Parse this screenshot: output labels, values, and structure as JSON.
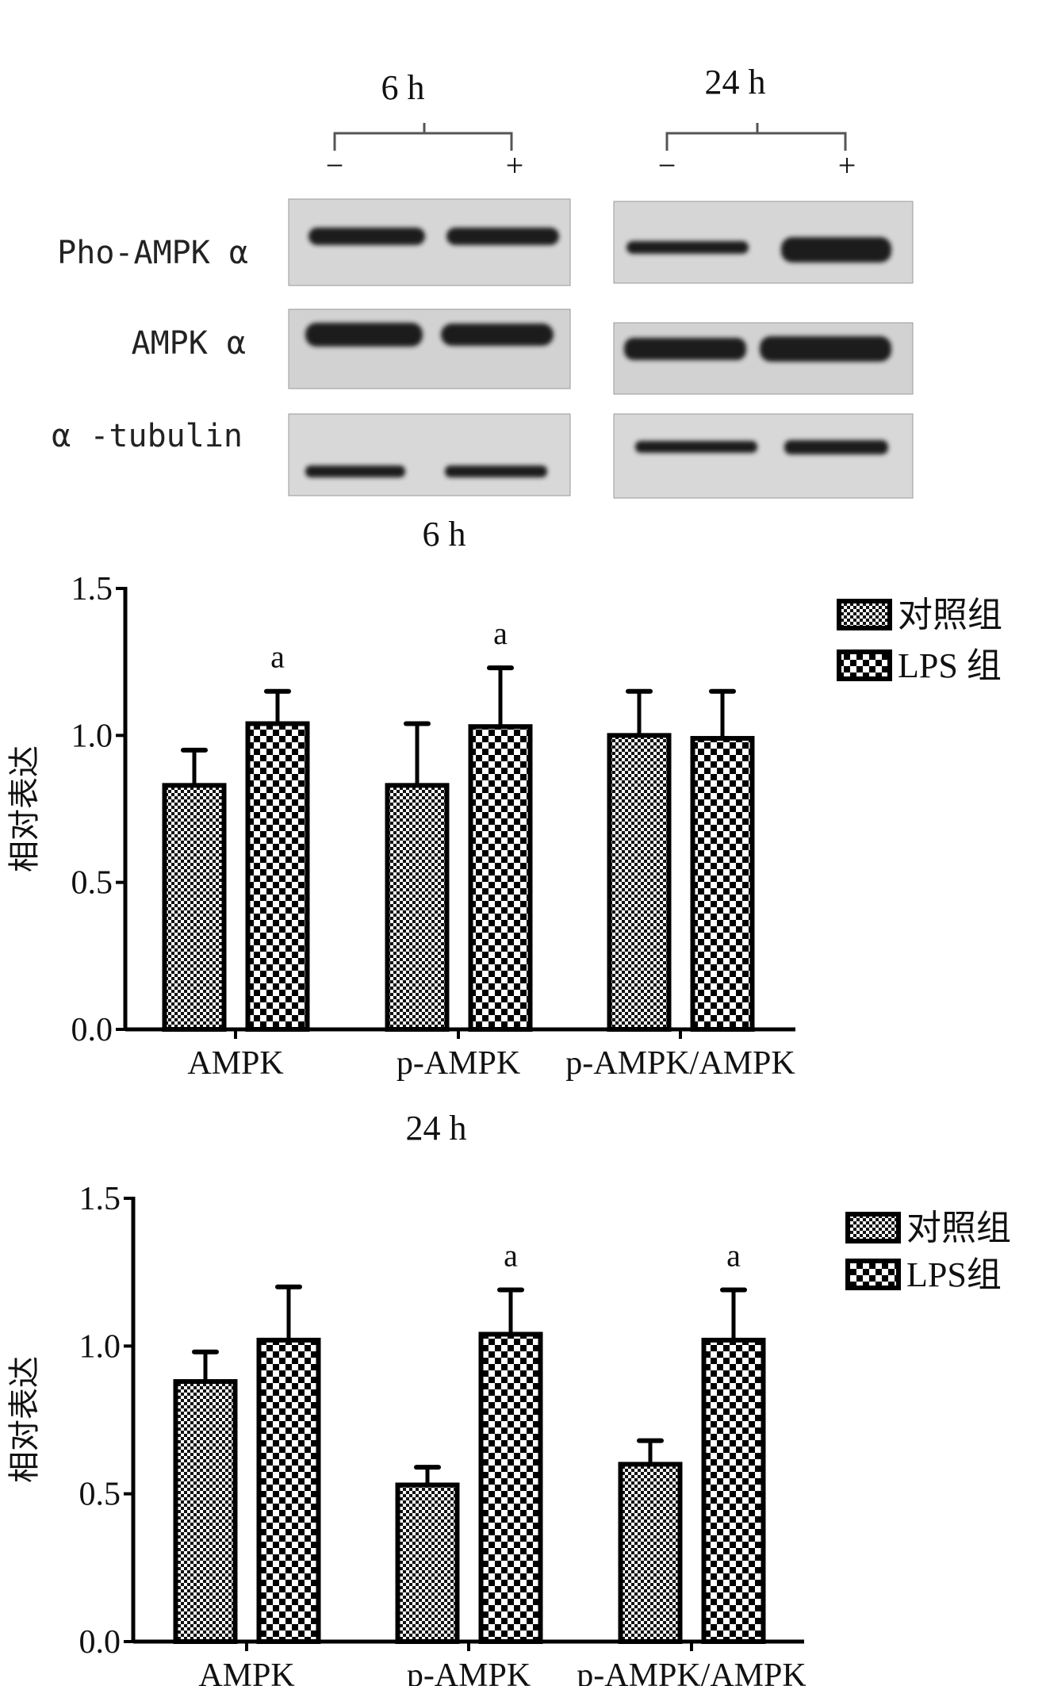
{
  "blot": {
    "time_labels": [
      "6 h",
      "24 h"
    ],
    "treatment_labels": [
      "−",
      "+"
    ],
    "row_labels": [
      "Pho-AMPK α",
      "AMPK α",
      "α -tubulin"
    ]
  },
  "colors": {
    "bar_outline": "#000000",
    "background": "#ffffff",
    "blot_bg": "#d9d9d9",
    "band": "#1a1a1a"
  },
  "legend": [
    "对照组",
    "LPS 组"
  ],
  "chart_data": [
    {
      "type": "bar",
      "title": "6 h",
      "ylabel": "相对表达",
      "xlabel": "",
      "ylim": [
        0,
        1.5
      ],
      "yticks": [
        "0.0",
        "0.5",
        "1.0",
        "1.5"
      ],
      "categories": [
        "AMPK",
        "p-AMPK",
        "p-AMPK/AMPK"
      ],
      "legend_position": "top-right",
      "series": [
        {
          "name": "对照组",
          "pattern": "fine-checker",
          "values": [
            0.83,
            0.83,
            1.0
          ],
          "error_upper": [
            0.95,
            1.04,
            1.15
          ]
        },
        {
          "name": "LPS 组",
          "pattern": "coarse-checker",
          "values": [
            1.04,
            1.03,
            0.99
          ],
          "error_upper": [
            1.15,
            1.23,
            1.15
          ]
        }
      ],
      "annotations": [
        {
          "series": 1,
          "category": 0,
          "text": "a"
        },
        {
          "series": 1,
          "category": 1,
          "text": "a"
        }
      ]
    },
    {
      "type": "bar",
      "title": "24 h",
      "ylabel": "相对表达",
      "xlabel": "",
      "ylim": [
        0,
        1.5
      ],
      "yticks": [
        "0.0",
        "0.5",
        "1.0",
        "1.5"
      ],
      "categories": [
        "AMPK",
        "p-AMPK",
        "p-AMPK/AMPK"
      ],
      "legend_position": "top-right",
      "series": [
        {
          "name": "对照组",
          "pattern": "fine-checker",
          "values": [
            0.88,
            0.53,
            0.6
          ],
          "error_upper": [
            0.98,
            0.59,
            0.68
          ]
        },
        {
          "name": "LPS组",
          "pattern": "coarse-checker",
          "values": [
            1.02,
            1.04,
            1.02
          ],
          "error_upper": [
            1.2,
            1.19,
            1.19
          ]
        }
      ],
      "annotations": [
        {
          "series": 1,
          "category": 1,
          "text": "a"
        },
        {
          "series": 1,
          "category": 2,
          "text": "a"
        }
      ]
    }
  ]
}
